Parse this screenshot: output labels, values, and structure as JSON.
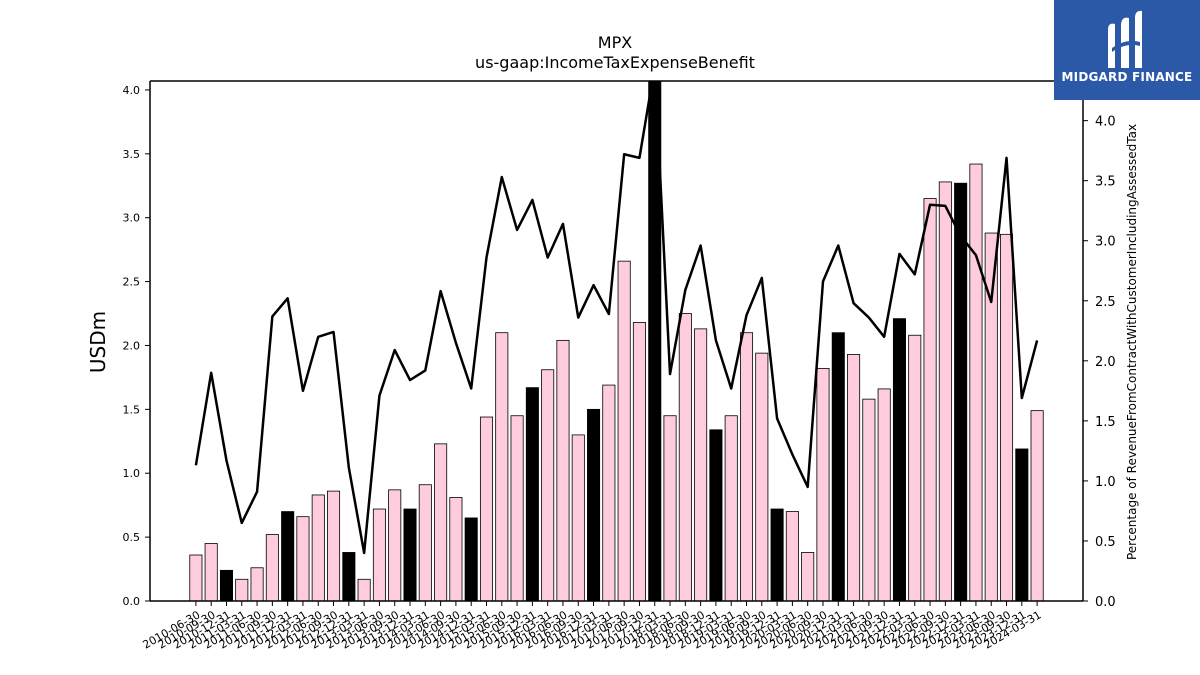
{
  "chart_data": {
    "type": "bar",
    "title": "MPX",
    "subtitle": "us-gaap:IncomeTaxExpenseBenefit",
    "ylabel": "USDm",
    "y2label": "Percentage of RevenueFromContractWithCustomerIncludingAssessedTax",
    "ylim": [
      0,
      4.07
    ],
    "y2lim": [
      0,
      4.33
    ],
    "yticks": [
      "0.0",
      "0.5",
      "1.0",
      "1.5",
      "2.0",
      "2.5",
      "3.0",
      "3.5",
      "4.0"
    ],
    "y2ticks": [
      "0.0",
      "0.5",
      "1.0",
      "1.5",
      "2.0",
      "2.5",
      "3.0",
      "3.5",
      "4.0"
    ],
    "categories": [
      "2010-06-30",
      "2010-09-30",
      "2010-12-31",
      "2011-03-31",
      "2011-06-30",
      "2011-09-30",
      "2011-12-31",
      "2012-03-31",
      "2012-06-30",
      "2012-09-30",
      "2012-12-31",
      "2013-03-31",
      "2013-06-30",
      "2013-09-30",
      "2013-12-31",
      "2014-03-31",
      "2014-06-30",
      "2014-09-30",
      "2014-12-31",
      "2015-03-31",
      "2015-06-30",
      "2015-09-30",
      "2015-12-31",
      "2016-03-31",
      "2016-06-30",
      "2016-09-30",
      "2016-12-31",
      "2017-03-31",
      "2017-06-30",
      "2017-09-30",
      "2017-12-31",
      "2018-03-31",
      "2018-06-30",
      "2018-09-30",
      "2018-12-31",
      "2019-03-31",
      "2019-06-30",
      "2019-09-30",
      "2019-12-31",
      "2020-03-31",
      "2020-06-30",
      "2020-09-30",
      "2020-12-31",
      "2021-03-31",
      "2021-06-30",
      "2021-09-30",
      "2021-12-31",
      "2022-03-31",
      "2022-06-30",
      "2022-09-30",
      "2022-12-31",
      "2023-03-31",
      "2023-06-30",
      "2023-09-30",
      "2023-12-31",
      "2024-03-31"
    ],
    "series": [
      {
        "kind": "bar",
        "values": [
          0.36,
          0.45,
          0.24,
          0.17,
          0.26,
          0.52,
          0.7,
          0.66,
          0.83,
          0.86,
          0.38,
          0.17,
          0.72,
          0.87,
          0.72,
          0.91,
          1.23,
          0.81,
          0.65,
          1.44,
          2.1,
          1.45,
          1.67,
          1.81,
          2.04,
          1.3,
          1.5,
          1.69,
          2.66,
          2.18,
          4.12,
          1.45,
          2.25,
          2.13,
          1.34,
          1.45,
          2.1,
          1.94,
          0.72,
          0.7,
          0.38,
          1.82,
          2.1,
          1.93,
          1.58,
          1.66,
          2.21,
          2.08,
          3.15,
          3.28,
          3.27,
          3.42,
          2.88,
          2.87,
          1.19,
          1.49
        ],
        "highlight": [
          false,
          false,
          true,
          false,
          false,
          false,
          true,
          false,
          false,
          false,
          true,
          false,
          false,
          false,
          true,
          false,
          false,
          false,
          true,
          false,
          false,
          false,
          true,
          false,
          false,
          false,
          true,
          false,
          false,
          false,
          true,
          false,
          false,
          false,
          true,
          false,
          false,
          false,
          true,
          false,
          false,
          false,
          true,
          false,
          false,
          false,
          true,
          false,
          false,
          false,
          true,
          false,
          false,
          false,
          true,
          false
        ]
      },
      {
        "kind": "line",
        "axis": "right",
        "values": [
          1.13,
          1.9,
          1.17,
          0.65,
          0.91,
          2.37,
          2.52,
          1.75,
          2.2,
          2.24,
          1.11,
          0.4,
          1.71,
          2.09,
          1.84,
          1.92,
          2.58,
          2.15,
          1.77,
          2.86,
          3.53,
          3.09,
          3.34,
          2.86,
          3.14,
          2.36,
          2.63,
          2.39,
          3.72,
          3.69,
          4.45,
          1.89,
          2.59,
          2.96,
          2.17,
          1.77,
          2.38,
          2.69,
          1.52,
          1.22,
          0.95,
          2.66,
          2.96,
          2.48,
          2.36,
          2.2,
          2.89,
          2.72,
          3.3,
          3.29,
          3.04,
          2.88,
          2.49,
          3.69,
          1.69,
          2.17
        ]
      }
    ],
    "colors": {
      "bar": "#ffccdd",
      "bar_highlight": "#000000",
      "bar_edge": "#000000",
      "line": "#000000"
    }
  },
  "brand": {
    "name": "MIDGARD FINANCE",
    "background": "#2b59a8",
    "icon": "midgard-logo-icon"
  }
}
